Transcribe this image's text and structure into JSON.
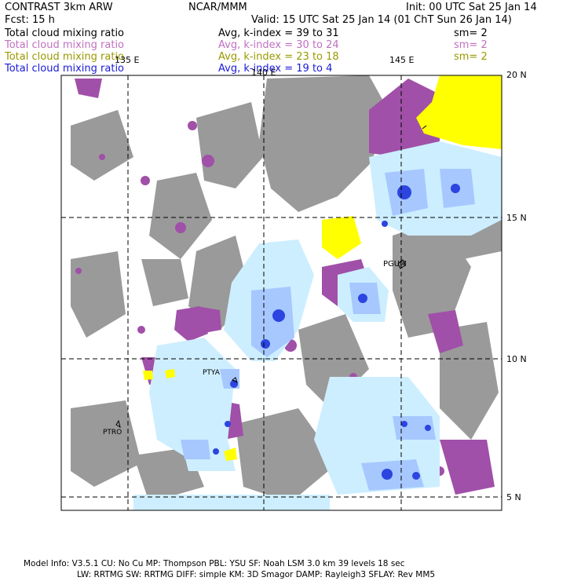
{
  "header": {
    "model": "CONTRAST  3km ARW",
    "org": "NCAR/MMM",
    "init": "Init: 00 UTC Sat 25 Jan 14",
    "fcst": "Fcst:    15 h",
    "valid": "Valid: 15 UTC Sat 25 Jan 14 (01 ChT Sun 26 Jan 14)"
  },
  "fields": [
    {
      "name": "Total cloud mixing ratio",
      "kindex": "Avg, k-index =   39  to   31",
      "sm": "sm= 2",
      "color": "#000000"
    },
    {
      "name": "Total cloud mixing ratio",
      "kindex": "Avg, k-index =   30  to   24",
      "sm": "sm= 2",
      "color": "#c070c0"
    },
    {
      "name": "Total cloud mixing ratio",
      "kindex": "Avg, k-index =   23  to   18",
      "sm": "sm= 2",
      "color": "#9a9a00"
    },
    {
      "name": "Total cloud mixing ratio",
      "kindex": "Avg, k-index =   19  to    4",
      "sm": "",
      "color": "#1a1ad8"
    }
  ],
  "map": {
    "lon_labels": [
      "135 E",
      "140 E",
      "145 E"
    ],
    "lat_labels": [
      "20 N",
      "15 N",
      "10 N",
      "5 N"
    ],
    "stations": [
      "PGUM",
      "PTYA",
      "PTRO"
    ],
    "colors": {
      "high": "#a050a8",
      "mid": "#9a9a9a",
      "low": "#ffff00",
      "light": "#cdeeff",
      "mid_blue": "#a6c8ff",
      "deep_blue": "#2c44e0"
    }
  },
  "footer": {
    "line1": "Model Info: V3.5.1     CU: No Cu     MP: Thompson     PBL: YSU       SF: Noah LSM      3.0 km   39 levels    18 sec",
    "line2": "LW: RRTMG    SW: RRTMG   DIFF: simple KM: 3D Smagor DAMP: Rayleigh3   SFLAY: Rev MM5"
  }
}
